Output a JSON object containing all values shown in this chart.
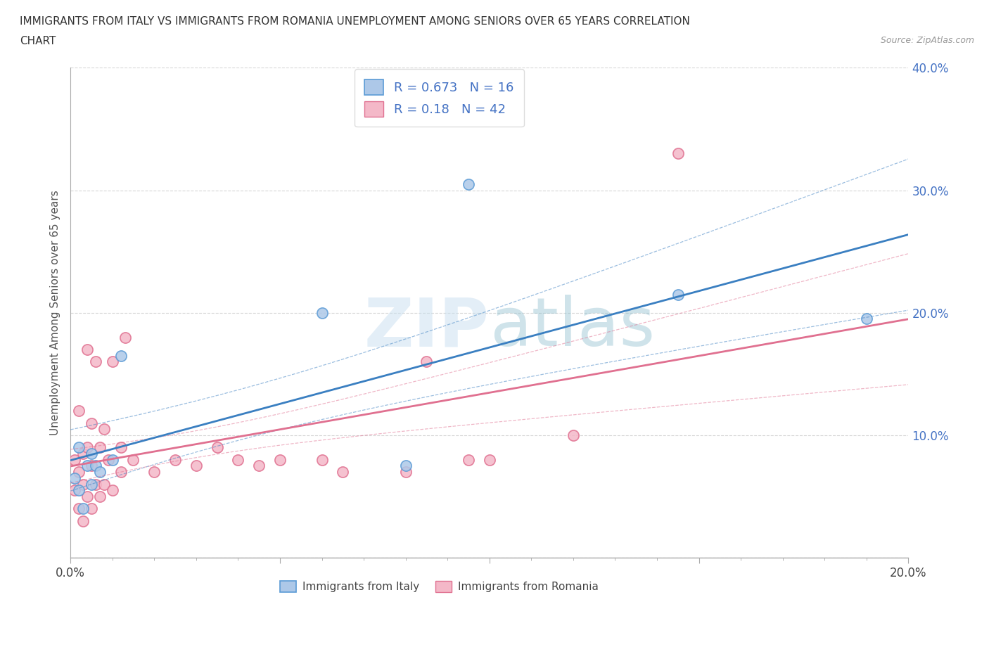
{
  "title_line1": "IMMIGRANTS FROM ITALY VS IMMIGRANTS FROM ROMANIA UNEMPLOYMENT AMONG SENIORS OVER 65 YEARS CORRELATION",
  "title_line2": "CHART",
  "source": "Source: ZipAtlas.com",
  "ylabel": "Unemployment Among Seniors over 65 years",
  "watermark": "ZIPatlas",
  "xlim": [
    0.0,
    0.2
  ],
  "ylim": [
    0.0,
    0.4
  ],
  "xticks": [
    0.0,
    0.05,
    0.1,
    0.15,
    0.2
  ],
  "xtick_labels": [
    "0.0%",
    "",
    "",
    "",
    "20.0%"
  ],
  "yticks": [
    0.0,
    0.1,
    0.2,
    0.3,
    0.4
  ],
  "ytick_labels": [
    "",
    "10.0%",
    "20.0%",
    "30.0%",
    "40.0%"
  ],
  "italy_color": "#adc8e8",
  "italy_edge": "#5b9bd5",
  "romania_color": "#f4b8c8",
  "romania_edge": "#e07090",
  "italy_line_color": "#3a7fc1",
  "romania_line_color": "#e07090",
  "italy_R": 0.673,
  "italy_N": 16,
  "romania_R": 0.18,
  "romania_N": 42,
  "legend_text_color": "#4472c4",
  "grid_color": "#cccccc",
  "italy_x": [
    0.001,
    0.002,
    0.002,
    0.003,
    0.004,
    0.005,
    0.005,
    0.006,
    0.007,
    0.01,
    0.012,
    0.06,
    0.08,
    0.095,
    0.145,
    0.19
  ],
  "italy_y": [
    0.065,
    0.055,
    0.09,
    0.04,
    0.075,
    0.06,
    0.085,
    0.075,
    0.07,
    0.08,
    0.165,
    0.2,
    0.075,
    0.305,
    0.215,
    0.195
  ],
  "romania_x": [
    0.001,
    0.001,
    0.002,
    0.002,
    0.002,
    0.003,
    0.003,
    0.003,
    0.004,
    0.004,
    0.004,
    0.005,
    0.005,
    0.005,
    0.006,
    0.006,
    0.007,
    0.007,
    0.008,
    0.008,
    0.009,
    0.01,
    0.01,
    0.012,
    0.012,
    0.013,
    0.015,
    0.02,
    0.025,
    0.03,
    0.035,
    0.04,
    0.045,
    0.05,
    0.06,
    0.065,
    0.08,
    0.085,
    0.095,
    0.1,
    0.12,
    0.145
  ],
  "romania_y": [
    0.055,
    0.08,
    0.04,
    0.07,
    0.12,
    0.03,
    0.06,
    0.085,
    0.05,
    0.09,
    0.17,
    0.04,
    0.075,
    0.11,
    0.06,
    0.16,
    0.05,
    0.09,
    0.06,
    0.105,
    0.08,
    0.055,
    0.16,
    0.07,
    0.09,
    0.18,
    0.08,
    0.07,
    0.08,
    0.075,
    0.09,
    0.08,
    0.075,
    0.08,
    0.08,
    0.07,
    0.07,
    0.16,
    0.08,
    0.08,
    0.1,
    0.33
  ]
}
